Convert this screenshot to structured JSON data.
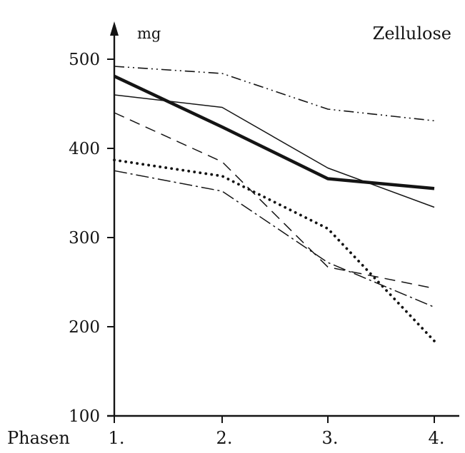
{
  "chart_data": {
    "type": "line",
    "title": "Zellulose",
    "ylabel": "mg",
    "xlabel": "Phasen",
    "categories": [
      "1.",
      "2.",
      "3.",
      "4."
    ],
    "ylim": [
      100,
      500
    ],
    "y_ticks": [
      "500",
      "400",
      "300",
      "200",
      "100"
    ],
    "grid": false,
    "series": [
      {
        "style": "dash-dot-dot",
        "values": [
          492,
          484,
          444,
          431
        ]
      },
      {
        "style": "thick-solid",
        "values": [
          481,
          424,
          366,
          355
        ]
      },
      {
        "style": "thin-solid",
        "values": [
          460,
          446,
          378,
          334
        ]
      },
      {
        "style": "dashed",
        "values": [
          440,
          385,
          267,
          243
        ]
      },
      {
        "style": "dotted",
        "values": [
          387,
          369,
          310,
          184
        ]
      },
      {
        "style": "dash-dot",
        "values": [
          375,
          352,
          272,
          222
        ]
      }
    ],
    "colors": {
      "ink": "#141414",
      "background": "#ffffff"
    }
  }
}
